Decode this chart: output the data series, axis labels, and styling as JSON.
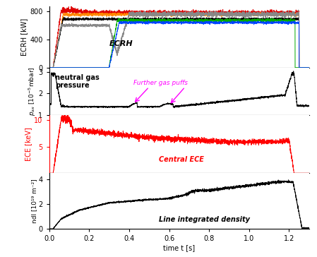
{
  "title": "",
  "xlabel": "time t [s]",
  "xlim": [
    0.0,
    1.3
  ],
  "xticks": [
    0.0,
    0.2,
    0.4,
    0.6,
    0.8,
    1.0,
    1.2
  ],
  "panel1_ylabel": "ECRH [kW]",
  "panel1_ylim": [
    0,
    870
  ],
  "panel1_yticks": [
    0,
    400,
    800
  ],
  "panel1_label": "ECRH",
  "panel2_ylabel_line1": "p",
  "panel2_ylim": [
    1.0,
    3.2
  ],
  "panel2_yticks": [
    1,
    2,
    3
  ],
  "panel2_label": "neutral gas\npressure",
  "panel2_annotation1": "Further gas puffs",
  "panel3_ylabel": "ECE [keV]",
  "panel3_ylim": [
    0,
    11
  ],
  "panel3_yticks": [
    5,
    10
  ],
  "panel3_label": "Central ECE",
  "panel3_label_color": "#ff0000",
  "panel4_ylabel": "ndl [10¹⁹ m⁻²]",
  "panel4_ylim": [
    0,
    4.5
  ],
  "panel4_yticks": [
    0,
    2,
    4
  ],
  "panel4_label": "Line integrated density",
  "background_color": "#ffffff"
}
